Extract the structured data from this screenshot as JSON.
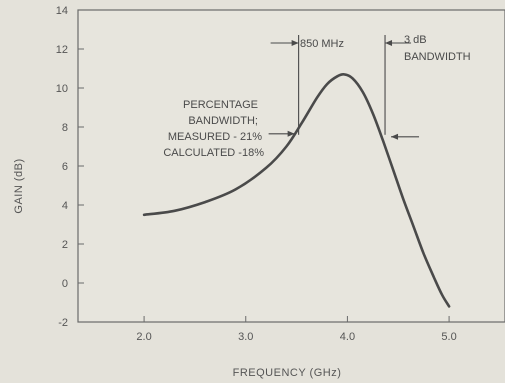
{
  "chart_data": {
    "type": "line",
    "xlabel": "FREQUENCY (GHz)",
    "ylabel": "GAIN (dB)",
    "xlim": [
      1.35,
      5.55
    ],
    "ylim": [
      -2,
      14
    ],
    "x_ticks": [
      2.0,
      3.0,
      4.0,
      5.0
    ],
    "x_tick_labels": [
      "2.0",
      "3.0",
      "4.0",
      "5.0"
    ],
    "y_ticks": [
      -2,
      0,
      2,
      4,
      6,
      8,
      10,
      12,
      14
    ],
    "y_tick_labels": [
      "-2",
      "0",
      "2",
      "4",
      "6",
      "8",
      "10",
      "12",
      "14"
    ],
    "grid": false,
    "series": [
      {
        "x": [
          2.0,
          2.3,
          2.6,
          2.9,
          3.2,
          3.4,
          3.55,
          3.7,
          3.8,
          3.9,
          3.97,
          4.05,
          4.15,
          4.25,
          4.35,
          4.45,
          4.55,
          4.65,
          4.75,
          4.85,
          4.93,
          5.0
        ],
        "y": [
          3.5,
          3.7,
          4.15,
          4.8,
          5.9,
          7.0,
          8.2,
          9.5,
          10.2,
          10.6,
          10.7,
          10.5,
          9.8,
          8.7,
          7.3,
          5.8,
          4.3,
          2.9,
          1.5,
          0.3,
          -0.6,
          -1.2
        ]
      }
    ],
    "annotations": {
      "bandwidth_label": "850 MHz",
      "db3_line1": "3 dB",
      "db3_line2": "BANDWIDTH",
      "pct_line1": "PERCENTAGE",
      "pct_line2": "BANDWIDTH;",
      "pct_line3": "MEASURED - 21%",
      "pct_line4": "CALCULATED -18%",
      "left_marker_x": 3.52,
      "right_marker_x": 4.37,
      "marker_gain": 7.6
    },
    "colors": {
      "background": "#e4e2da",
      "plot_area": "#e7e5dd",
      "curve": "#4a4a4a",
      "axis": "#6a6a6a"
    }
  }
}
